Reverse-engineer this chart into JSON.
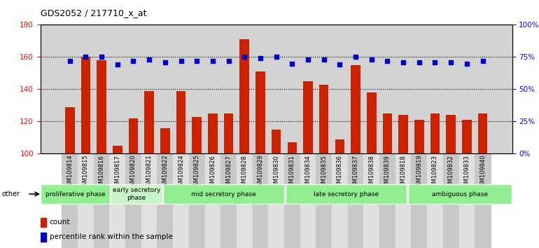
{
  "title": "GDS2052 / 217710_x_at",
  "samples": [
    "GSM109814",
    "GSM109815",
    "GSM109816",
    "GSM109817",
    "GSM109820",
    "GSM109821",
    "GSM109822",
    "GSM109824",
    "GSM109825",
    "GSM109826",
    "GSM109827",
    "GSM109828",
    "GSM109829",
    "GSM109830",
    "GSM109831",
    "GSM109834",
    "GSM109835",
    "GSM109836",
    "GSM109837",
    "GSM109838",
    "GSM109839",
    "GSM109818",
    "GSM109819",
    "GSM109823",
    "GSM109832",
    "GSM109833",
    "GSM109840"
  ],
  "bar_values": [
    129,
    160,
    158,
    105,
    122,
    139,
    116,
    139,
    123,
    125,
    125,
    171,
    151,
    115,
    107,
    145,
    143,
    109,
    155,
    138,
    125,
    124,
    121,
    125,
    124,
    121,
    125
  ],
  "pct_values": [
    72,
    75,
    75,
    69,
    72,
    73,
    71,
    72,
    72,
    72,
    72,
    75,
    74,
    75,
    70,
    73,
    73,
    69,
    75,
    73,
    72,
    71,
    71,
    71,
    71,
    70,
    72
  ],
  "phases": [
    {
      "label": "proliferative phase",
      "start": 0,
      "end": 4,
      "color": "#90ee90"
    },
    {
      "label": "early secretory\nphase",
      "start": 4,
      "end": 7,
      "color": "#c8f4c8"
    },
    {
      "label": "mid secretory phase",
      "start": 7,
      "end": 14,
      "color": "#90ee90"
    },
    {
      "label": "late secretory phase",
      "start": 14,
      "end": 21,
      "color": "#90ee90"
    },
    {
      "label": "ambiguous phase",
      "start": 21,
      "end": 27,
      "color": "#90ee90"
    }
  ],
  "ylim": [
    100,
    180
  ],
  "y2lim": [
    0,
    100
  ],
  "yticks": [
    100,
    120,
    140,
    160,
    180
  ],
  "y2ticks": [
    0,
    25,
    50,
    75,
    100
  ],
  "bar_color": "#cc2200",
  "dot_color": "#0000cc",
  "bg_color": "#d3d3d3",
  "bar_bottom": 100,
  "grid_lines": [
    120,
    140,
    160
  ]
}
